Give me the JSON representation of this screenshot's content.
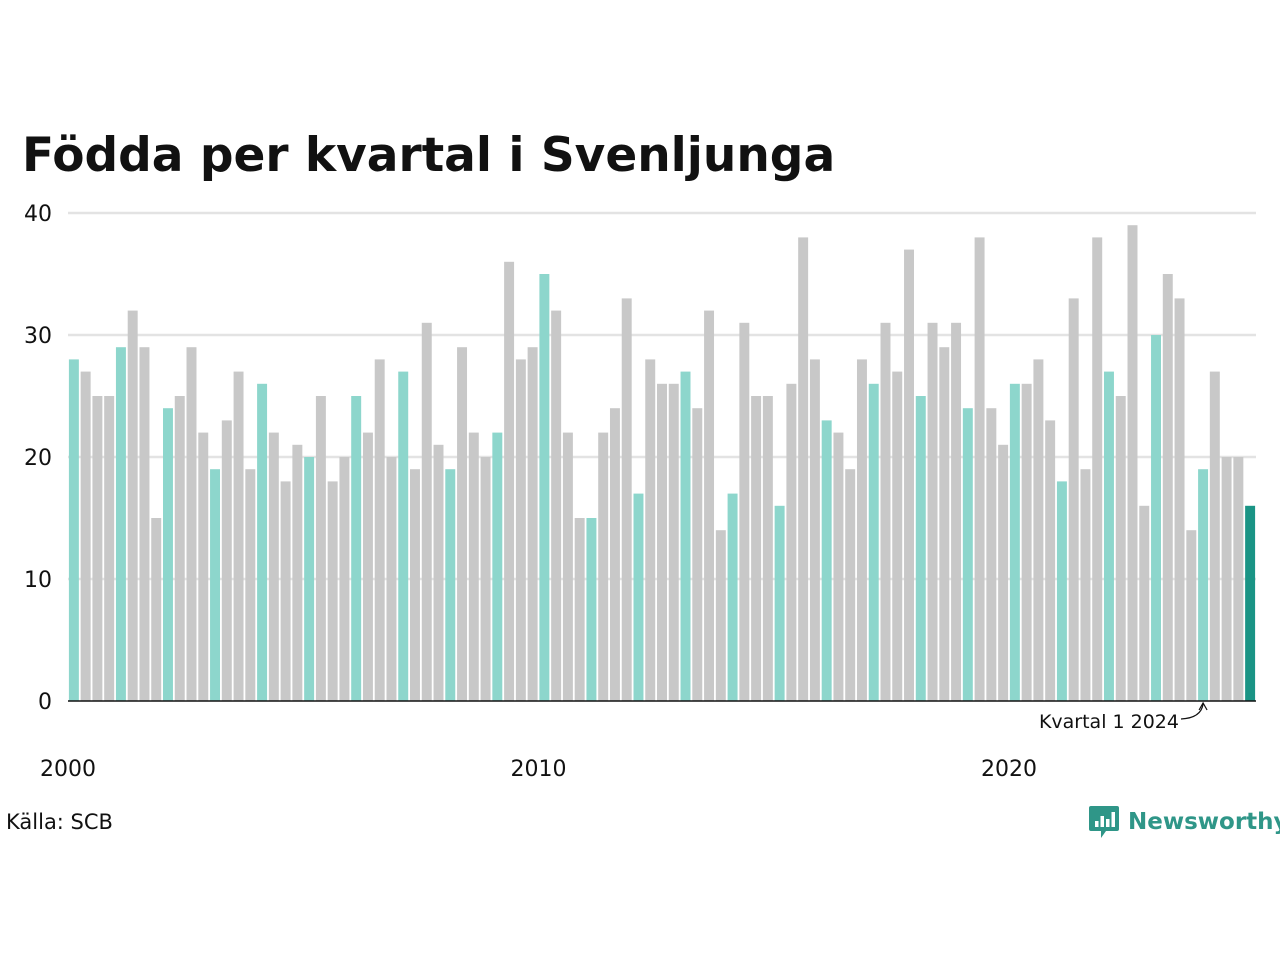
{
  "chart_data": {
    "type": "bar",
    "title": "Födda per kvartal i Svenljunga",
    "xlabel": "",
    "ylabel": "",
    "ylim": [
      0,
      40
    ],
    "y_ticks": [
      "0",
      "10",
      "20",
      "30",
      "40"
    ],
    "x_tick_labels": [
      {
        "label": "2000",
        "year": 2000
      },
      {
        "label": "2010",
        "year": 2010
      },
      {
        "label": "2020",
        "year": 2020
      }
    ],
    "start": {
      "year": 2000,
      "quarter": 1
    },
    "values": [
      28,
      27,
      25,
      25,
      29,
      32,
      29,
      15,
      24,
      25,
      29,
      22,
      19,
      23,
      27,
      19,
      26,
      22,
      18,
      21,
      20,
      25,
      18,
      20,
      25,
      22,
      28,
      20,
      27,
      19,
      31,
      21,
      19,
      29,
      22,
      20,
      22,
      36,
      28,
      29,
      35,
      32,
      22,
      15,
      15,
      22,
      24,
      33,
      17,
      28,
      26,
      26,
      27,
      24,
      32,
      14,
      17,
      31,
      25,
      25,
      16,
      26,
      38,
      28,
      23,
      22,
      19,
      28,
      26,
      31,
      27,
      37,
      25,
      31,
      29,
      31,
      24,
      38,
      24,
      21,
      26,
      26,
      28,
      23,
      18,
      33,
      19,
      38,
      27,
      25,
      39,
      16,
      30,
      35,
      33,
      14,
      19,
      27,
      20,
      20,
      16
    ],
    "grid": true,
    "colors": {
      "q1": "#8dd6cc",
      "other": "#c8c8c8",
      "latest": "#1a9485",
      "grid": "#e3e3e3",
      "axis": "#111111"
    },
    "annotation": {
      "text": "Kvartal 1 2024"
    },
    "source": "Källa: SCB"
  },
  "logo": {
    "text": "Newsworthy",
    "icon": "bar-chart-speech-bubble-icon"
  }
}
